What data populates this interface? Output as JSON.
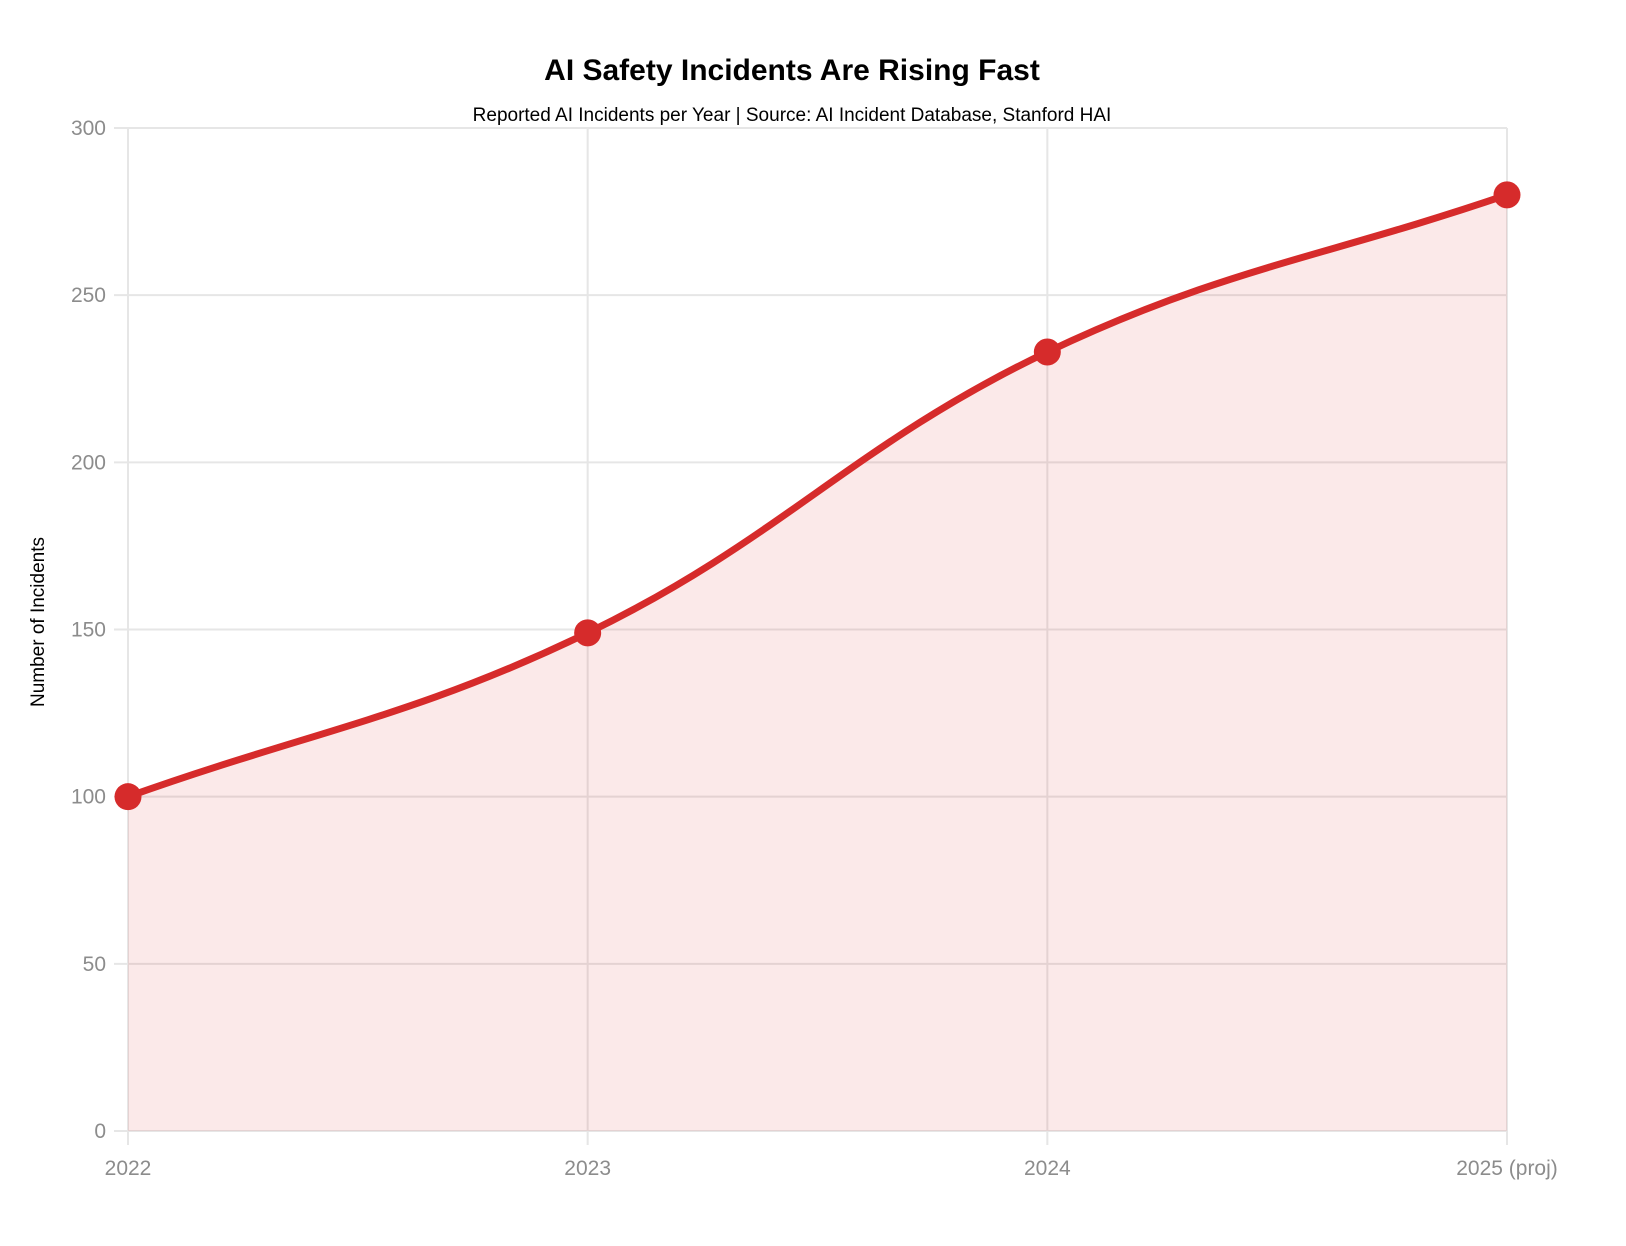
{
  "chart": {
    "title": "AI Safety Incidents Are Rising Fast",
    "subtitle": "Reported AI Incidents per Year | Source: AI Incident Database, Stanford HAI",
    "y_axis_title": "Number of Incidents"
  },
  "chart_data": {
    "type": "area",
    "categories": [
      "2022",
      "2023",
      "2024",
      "2025 (proj)"
    ],
    "values": [
      100,
      149,
      233,
      280
    ],
    "title": "AI Safety Incidents Are Rising Fast",
    "subtitle": "Reported AI Incidents per Year | Source: AI Incident Database, Stanford HAI",
    "xlabel": "",
    "ylabel": "Number of Incidents",
    "ylim": [
      0,
      300
    ],
    "yticks": [
      0,
      50,
      100,
      150,
      200,
      250,
      300
    ],
    "grid": true,
    "legend": false,
    "line_tension": 0.4,
    "colors": {
      "line": "#d62b2b",
      "point": "#d62b2b",
      "fill": "#d62b2b",
      "fill_opacity": 0.1,
      "grid": "#e6e6e6",
      "tick_label": "#8c8c8c",
      "title": "#555555",
      "subtitle": "#6b6b6b",
      "axis_title": "#787878"
    }
  }
}
